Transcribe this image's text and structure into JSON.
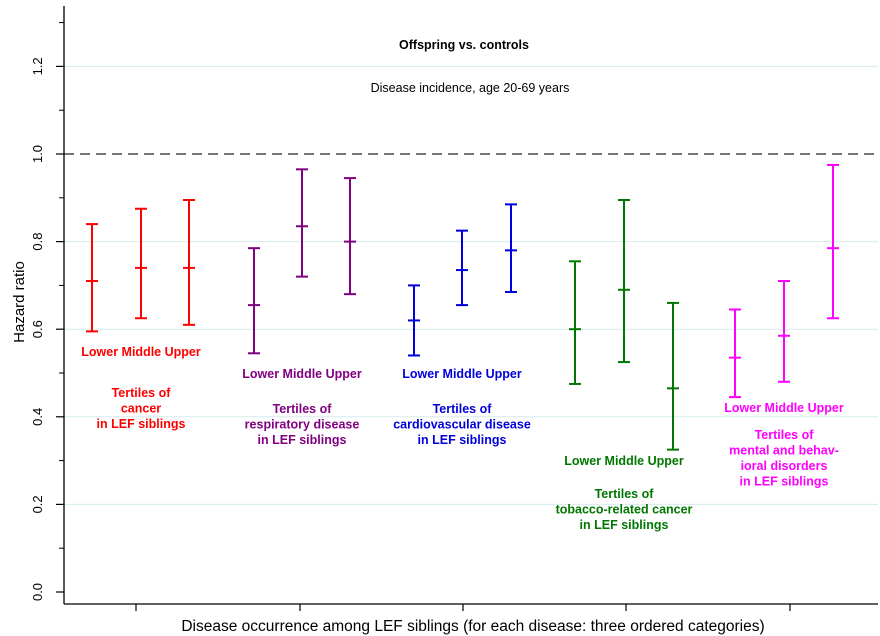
{
  "chart_data": {
    "type": "errorbar",
    "title": "Offspring vs. controls",
    "subtitle": "Disease incidence, age 20-69 years",
    "xlabel": "Disease occurrence among LEF siblings (for each disease: three ordered categories)",
    "ylabel": "Hazard ratio",
    "ylim": [
      0,
      1.3
    ],
    "yticks": [
      "0.0",
      "0.2",
      "0.4",
      "0.6",
      "0.8",
      "1.0",
      "1.2"
    ],
    "reference_line": 1.0,
    "categories": [
      "Lower",
      "Middle",
      "Upper"
    ],
    "groups": [
      {
        "color": "#ff0000",
        "category_label": "Lower Middle Upper",
        "caption": [
          "Tertiles of",
          "cancer",
          "in LEF siblings"
        ],
        "points": [
          {
            "category": "Lower",
            "estimate": 0.71,
            "lower": 0.595,
            "upper": 0.84
          },
          {
            "category": "Middle",
            "estimate": 0.74,
            "lower": 0.625,
            "upper": 0.875
          },
          {
            "category": "Upper",
            "estimate": 0.74,
            "lower": 0.61,
            "upper": 0.895
          }
        ]
      },
      {
        "color": "#800080",
        "category_label": "Lower Middle Upper",
        "caption": [
          "Tertiles of",
          "respiratory disease",
          "in LEF siblings"
        ],
        "points": [
          {
            "category": "Lower",
            "estimate": 0.655,
            "lower": 0.545,
            "upper": 0.785
          },
          {
            "category": "Middle",
            "estimate": 0.835,
            "lower": 0.72,
            "upper": 0.965
          },
          {
            "category": "Upper",
            "estimate": 0.8,
            "lower": 0.68,
            "upper": 0.945
          }
        ]
      },
      {
        "color": "#0000dd",
        "category_label": "Lower Middle Upper",
        "caption": [
          "Tertiles of",
          "cardiovascular disease",
          "in LEF siblings"
        ],
        "points": [
          {
            "category": "Lower",
            "estimate": 0.62,
            "lower": 0.54,
            "upper": 0.7
          },
          {
            "category": "Middle",
            "estimate": 0.735,
            "lower": 0.655,
            "upper": 0.825
          },
          {
            "category": "Upper",
            "estimate": 0.78,
            "lower": 0.685,
            "upper": 0.885
          }
        ]
      },
      {
        "color": "#007700",
        "category_label": "Lower Middle Upper",
        "caption": [
          "Tertiles of",
          "tobacco-related cancer",
          "in LEF siblings"
        ],
        "points": [
          {
            "category": "Lower",
            "estimate": 0.6,
            "lower": 0.475,
            "upper": 0.755
          },
          {
            "category": "Middle",
            "estimate": 0.69,
            "lower": 0.525,
            "upper": 0.895
          },
          {
            "category": "Upper",
            "estimate": 0.465,
            "lower": 0.325,
            "upper": 0.66
          }
        ]
      },
      {
        "color": "#ff00ff",
        "category_label": "Lower Middle Upper",
        "caption": [
          "Tertiles of",
          "mental and behav-",
          "ioral disorders",
          "in LEF siblings"
        ],
        "points": [
          {
            "category": "Lower",
            "estimate": 0.535,
            "lower": 0.445,
            "upper": 0.645
          },
          {
            "category": "Middle",
            "estimate": 0.585,
            "lower": 0.48,
            "upper": 0.71
          },
          {
            "category": "Upper",
            "estimate": 0.785,
            "lower": 0.625,
            "upper": 0.975
          }
        ]
      }
    ],
    "grid": true,
    "legend": "none"
  }
}
